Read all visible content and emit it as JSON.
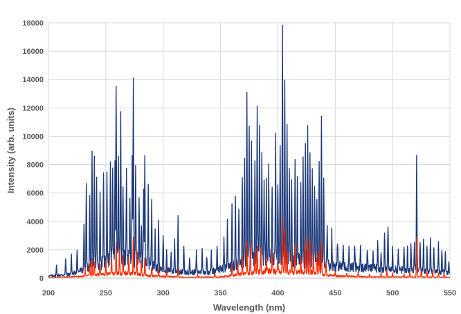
{
  "chart_data": {
    "type": "line",
    "title": "",
    "xlabel": "Wavelength (nm)",
    "ylabel": "Intensity (arb. units)",
    "xlim": [
      200,
      550
    ],
    "ylim": [
      0,
      18000
    ],
    "x_ticks": [
      200,
      250,
      300,
      350,
      400,
      450,
      500,
      550
    ],
    "y_ticks": [
      0,
      2000,
      4000,
      6000,
      8000,
      10000,
      12000,
      14000,
      16000,
      18000
    ],
    "grid": true,
    "legend": "none",
    "series": [
      {
        "color": "#1f3b7a",
        "background": [
          [
            200,
            150
          ],
          [
            220,
            280
          ],
          [
            240,
            900
          ],
          [
            260,
            1500
          ],
          [
            280,
            1300
          ],
          [
            300,
            550
          ],
          [
            320,
            400
          ],
          [
            340,
            450
          ],
          [
            360,
            800
          ],
          [
            380,
            1400
          ],
          [
            400,
            1500
          ],
          [
            420,
            1200
          ],
          [
            440,
            950
          ],
          [
            460,
            800
          ],
          [
            480,
            700
          ],
          [
            500,
            600
          ],
          [
            520,
            550
          ],
          [
            550,
            400
          ]
        ],
        "peaks": [
          [
            207,
            700
          ],
          [
            215,
            1100
          ],
          [
            220,
            1300
          ],
          [
            225,
            1700
          ],
          [
            231,
            3300
          ],
          [
            233,
            5900
          ],
          [
            236,
            4900
          ],
          [
            238,
            7900
          ],
          [
            240,
            7800
          ],
          [
            242,
            6100
          ],
          [
            245,
            5000
          ],
          [
            248,
            5900
          ],
          [
            251,
            6100
          ],
          [
            254,
            7300
          ],
          [
            256,
            6500
          ],
          [
            258,
            7200
          ],
          [
            259,
            12400
          ],
          [
            261,
            6900
          ],
          [
            263,
            10300
          ],
          [
            265,
            5200
          ],
          [
            268,
            5900
          ],
          [
            271,
            4500
          ],
          [
            273,
            6700
          ],
          [
            274,
            12800
          ],
          [
            276,
            6900
          ],
          [
            279,
            4900
          ],
          [
            281,
            2800
          ],
          [
            283,
            5600
          ],
          [
            284,
            7900
          ],
          [
            287,
            5400
          ],
          [
            290,
            4500
          ],
          [
            293,
            2900
          ],
          [
            296,
            3300
          ],
          [
            300,
            2600
          ],
          [
            303,
            1600
          ],
          [
            307,
            1300
          ],
          [
            310,
            2300
          ],
          [
            313,
            4100
          ],
          [
            318,
            1900
          ],
          [
            323,
            1000
          ],
          [
            329,
            1400
          ],
          [
            334,
            1700
          ],
          [
            338,
            1200
          ],
          [
            342,
            1300
          ],
          [
            347,
            1800
          ],
          [
            353,
            2000
          ],
          [
            356,
            3500
          ],
          [
            360,
            4600
          ],
          [
            363,
            5000
          ],
          [
            366,
            4000
          ],
          [
            369,
            6000
          ],
          [
            371,
            7100
          ],
          [
            373,
            11600
          ],
          [
            375,
            9000
          ],
          [
            377,
            8200
          ],
          [
            380,
            6600
          ],
          [
            382,
            10600
          ],
          [
            384,
            9600
          ],
          [
            386,
            7000
          ],
          [
            388,
            5700
          ],
          [
            390,
            5000
          ],
          [
            392,
            6200
          ],
          [
            395,
            5400
          ],
          [
            398,
            8600
          ],
          [
            400,
            5500
          ],
          [
            402,
            7800
          ],
          [
            404,
            16700
          ],
          [
            406,
            12100
          ],
          [
            408,
            9600
          ],
          [
            410,
            6100
          ],
          [
            412,
            5100
          ],
          [
            415,
            6600
          ],
          [
            417,
            5500
          ],
          [
            420,
            5400
          ],
          [
            422,
            7900
          ],
          [
            424,
            8400
          ],
          [
            426,
            9700
          ],
          [
            428,
            7300
          ],
          [
            430,
            6400
          ],
          [
            432,
            5800
          ],
          [
            434,
            4900
          ],
          [
            436,
            6800
          ],
          [
            438,
            10800
          ],
          [
            440,
            6100
          ],
          [
            443,
            3200
          ],
          [
            447,
            2300
          ],
          [
            452,
            1700
          ],
          [
            457,
            1500
          ],
          [
            462,
            1400
          ],
          [
            467,
            1700
          ],
          [
            472,
            1300
          ],
          [
            478,
            1500
          ],
          [
            483,
            1200
          ],
          [
            487,
            1900
          ],
          [
            490,
            1400
          ],
          [
            493,
            2800
          ],
          [
            496,
            3100
          ],
          [
            500,
            1400
          ],
          [
            505,
            1500
          ],
          [
            510,
            1700
          ],
          [
            513,
            1900
          ],
          [
            516,
            2100
          ],
          [
            519,
            1800
          ],
          [
            521,
            8200
          ],
          [
            524,
            2000
          ],
          [
            527,
            2300
          ],
          [
            530,
            1800
          ],
          [
            533,
            2400
          ],
          [
            536,
            1700
          ],
          [
            540,
            2000
          ],
          [
            543,
            1600
          ],
          [
            546,
            1500
          ],
          [
            549,
            900
          ]
        ]
      },
      {
        "color": "#ff2a00",
        "background": [
          [
            200,
            40
          ],
          [
            230,
            120
          ],
          [
            250,
            300
          ],
          [
            270,
            350
          ],
          [
            290,
            150
          ],
          [
            320,
            60
          ],
          [
            350,
            80
          ],
          [
            370,
            300
          ],
          [
            390,
            500
          ],
          [
            410,
            450
          ],
          [
            430,
            400
          ],
          [
            450,
            150
          ],
          [
            480,
            80
          ],
          [
            520,
            80
          ],
          [
            550,
            60
          ]
        ],
        "peaks": [
          [
            232,
            500
          ],
          [
            236,
            800
          ],
          [
            238,
            1200
          ],
          [
            240,
            1000
          ],
          [
            245,
            700
          ],
          [
            250,
            900
          ],
          [
            255,
            1200
          ],
          [
            259,
            2300
          ],
          [
            262,
            1800
          ],
          [
            265,
            1100
          ],
          [
            270,
            1000
          ],
          [
            274,
            2600
          ],
          [
            277,
            1500
          ],
          [
            281,
            1000
          ],
          [
            284,
            1300
          ],
          [
            290,
            600
          ],
          [
            296,
            500
          ],
          [
            303,
            400
          ],
          [
            313,
            600
          ],
          [
            330,
            200
          ],
          [
            345,
            300
          ],
          [
            360,
            700
          ],
          [
            365,
            800
          ],
          [
            369,
            1200
          ],
          [
            373,
            2200
          ],
          [
            376,
            2000
          ],
          [
            380,
            1400
          ],
          [
            382,
            1900
          ],
          [
            385,
            1500
          ],
          [
            390,
            900
          ],
          [
            395,
            1200
          ],
          [
            400,
            1000
          ],
          [
            404,
            3600
          ],
          [
            406,
            2900
          ],
          [
            408,
            1800
          ],
          [
            412,
            1300
          ],
          [
            415,
            1800
          ],
          [
            420,
            1200
          ],
          [
            424,
            1900
          ],
          [
            426,
            2400
          ],
          [
            428,
            2300
          ],
          [
            431,
            1300
          ],
          [
            434,
            1100
          ],
          [
            436,
            1500
          ],
          [
            438,
            2100
          ],
          [
            442,
            900
          ],
          [
            450,
            300
          ],
          [
            460,
            250
          ],
          [
            470,
            300
          ],
          [
            480,
            200
          ],
          [
            490,
            250
          ],
          [
            495,
            500
          ],
          [
            500,
            300
          ],
          [
            510,
            200
          ],
          [
            515,
            350
          ],
          [
            521,
            2800
          ],
          [
            525,
            500
          ],
          [
            530,
            400
          ],
          [
            535,
            500
          ],
          [
            540,
            300
          ],
          [
            545,
            200
          ]
        ]
      }
    ]
  }
}
